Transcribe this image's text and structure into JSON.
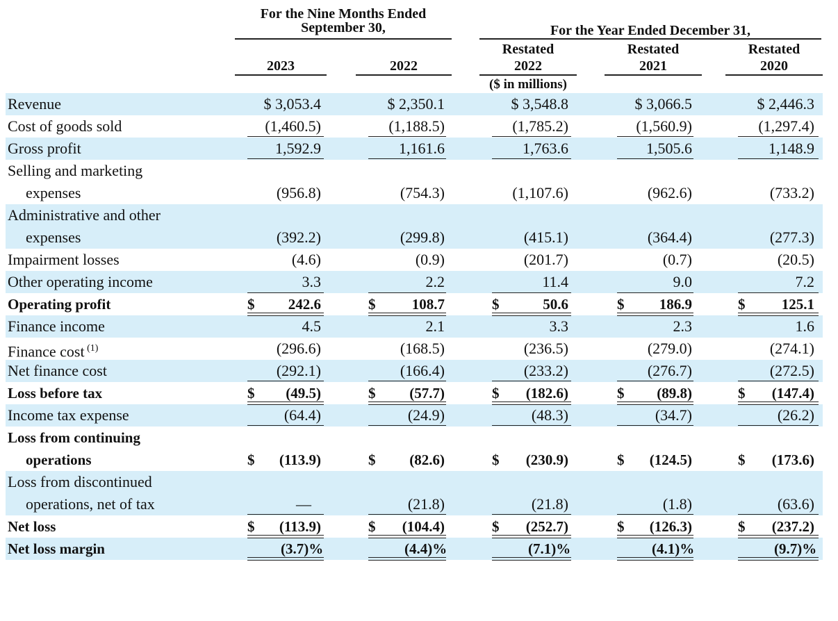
{
  "header": {
    "group1_line1": "For the Nine Months Ended",
    "group1_line2": "September 30,",
    "group2": "For the Year Ended December 31,",
    "restated": "Restated",
    "units": "($ in millions)",
    "columns": [
      "2023",
      "2022",
      "2022",
      "2021",
      "2020"
    ]
  },
  "rows": [
    {
      "label": "Revenue",
      "bold": false,
      "band": true,
      "values": [
        "$ 3,053.4",
        "$ 2,350.1",
        "$ 3,548.8",
        "$ 3,066.5",
        "$ 2,446.3"
      ]
    },
    {
      "label": "Cost of goods sold",
      "bold": false,
      "band": false,
      "values": [
        "(1,460.5)",
        "(1,188.5)",
        "(1,785.2)",
        "(1,560.9)",
        "(1,297.4)"
      ]
    },
    {
      "label": "Gross profit",
      "bold": false,
      "band": true,
      "values": [
        "1,592.9",
        "1,161.6",
        "1,763.6",
        "1,505.6",
        "1,148.9"
      ]
    },
    {
      "label_lines": [
        "Selling and marketing",
        "expenses"
      ],
      "bold": false,
      "band": false,
      "values": [
        "(956.8)",
        "(754.3)",
        "(1,107.6)",
        "(962.6)",
        "(733.2)"
      ]
    },
    {
      "label_lines": [
        "Administrative and other",
        "expenses"
      ],
      "bold": false,
      "band": true,
      "values": [
        "(392.2)",
        "(299.8)",
        "(415.1)",
        "(364.4)",
        "(277.3)"
      ]
    },
    {
      "label": "Impairment losses",
      "bold": false,
      "band": false,
      "values": [
        "(4.6)",
        "(0.9)",
        "(201.7)",
        "(0.7)",
        "(20.5)"
      ]
    },
    {
      "label": "Other operating income",
      "bold": false,
      "band": true,
      "values": [
        "3.3",
        "2.2",
        "11.4",
        "9.0",
        "7.2"
      ]
    },
    {
      "label": "Operating profit",
      "bold": true,
      "band": false,
      "dollar": "$",
      "values": [
        "242.6",
        "108.7",
        "50.6",
        "186.9",
        "125.1"
      ]
    },
    {
      "label": "Finance income",
      "bold": false,
      "band": true,
      "values": [
        "4.5",
        "2.1",
        "3.3",
        "2.3",
        "1.6"
      ]
    },
    {
      "label": "Finance cost",
      "footnote": "(1)",
      "bold": false,
      "band": false,
      "values": [
        "(296.6)",
        "(168.5)",
        "(236.5)",
        "(279.0)",
        "(274.1)"
      ]
    },
    {
      "label": "Net finance cost",
      "bold": false,
      "band": true,
      "values": [
        "(292.1)",
        "(166.4)",
        "(233.2)",
        "(276.7)",
        "(272.5)"
      ]
    },
    {
      "label": "Loss before tax",
      "bold": true,
      "band": false,
      "dollar": "$",
      "values": [
        "(49.5)",
        "(57.7)",
        "(182.6)",
        "(89.8)",
        "(147.4)"
      ]
    },
    {
      "label": "Income tax expense",
      "bold": false,
      "band": true,
      "values": [
        "(64.4)",
        "(24.9)",
        "(48.3)",
        "(34.7)",
        "(26.2)"
      ]
    },
    {
      "label_lines": [
        "Loss from continuing",
        "operations"
      ],
      "bold": true,
      "band": false,
      "dollar": "$",
      "values": [
        "(113.9)",
        "(82.6)",
        "(230.9)",
        "(124.5)",
        "(173.6)"
      ]
    },
    {
      "label_lines": [
        "Loss from discontinued",
        "operations, net of tax"
      ],
      "bold": false,
      "band": true,
      "values": [
        "—",
        "(21.8)",
        "(21.8)",
        "(1.8)",
        "(63.6)"
      ]
    },
    {
      "label": "Net loss",
      "bold": true,
      "band": false,
      "dollar": "$",
      "values": [
        "(113.9)",
        "(104.4)",
        "(252.7)",
        "(126.3)",
        "(237.2)"
      ]
    },
    {
      "label": "Net loss margin",
      "bold": true,
      "band": true,
      "percent": "%",
      "values": [
        "(3.7)",
        "(4.4)",
        "(7.1)",
        "(4.1)",
        "(9.7)"
      ]
    }
  ]
}
